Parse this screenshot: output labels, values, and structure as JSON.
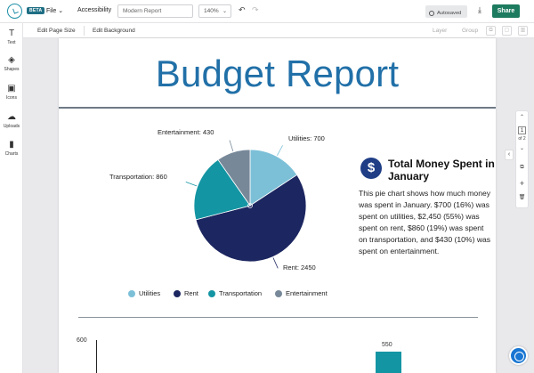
{
  "topbar": {
    "badge": "BETA",
    "file_menu": "File",
    "file_caret": "⌄",
    "accessibility": "Accessibility",
    "title_value": "Modern Report",
    "zoom_value": "140%",
    "zoom_caret": "⌄",
    "undo_icon": "↶",
    "redo_icon": "↷",
    "autosaved": "Autosaved",
    "download_icon": "⤓",
    "share": "Share"
  },
  "sidebar": {
    "items": [
      {
        "label": "Text",
        "glyph": "T"
      },
      {
        "label": "Shapes",
        "glyph": "◈"
      },
      {
        "label": "Icons",
        "glyph": "▣"
      },
      {
        "label": "Uploads",
        "glyph": "☁"
      },
      {
        "label": "Charts",
        "glyph": "▮"
      }
    ]
  },
  "subbar": {
    "edit_page_size": "Edit Page Size",
    "edit_background": "Edit Background",
    "layer": "Layer",
    "group": "Group"
  },
  "report": {
    "title": "Budget Report",
    "info_icon": "$",
    "info_title": "Total Money Spent in January",
    "info_body": "This pie chart shows how much money was spent in January. $700 (16%) was spent on utilities, $2,450 (55%) was spent on rent, $860 (19%) was spent on transportation, and $430 (10%) was spent on entertainment."
  },
  "chart_data": [
    {
      "type": "pie",
      "title": "Total Money Spent in January",
      "categories": [
        "Utilities",
        "Rent",
        "Transportation",
        "Entertainment"
      ],
      "values": [
        700,
        2450,
        860,
        430
      ],
      "labels": [
        "Utilities: 700",
        "Rent: 2450",
        "Transportation: 860",
        "Entertainment: 430"
      ],
      "colors": [
        "#7cc0d8",
        "#1c2660",
        "#1495a3",
        "#778899"
      ],
      "legend": "bottom"
    },
    {
      "type": "bar",
      "ytick_top": "600",
      "visible_value_label": "550",
      "values": [
        550
      ],
      "color": "#1495a3"
    }
  ],
  "right_tools": {
    "up": "⌃",
    "page_current": "1",
    "page_of": "of 2",
    "down": "⌄",
    "collapse": "‹",
    "copy": "⧉",
    "add": "+",
    "delete": "🗑"
  }
}
